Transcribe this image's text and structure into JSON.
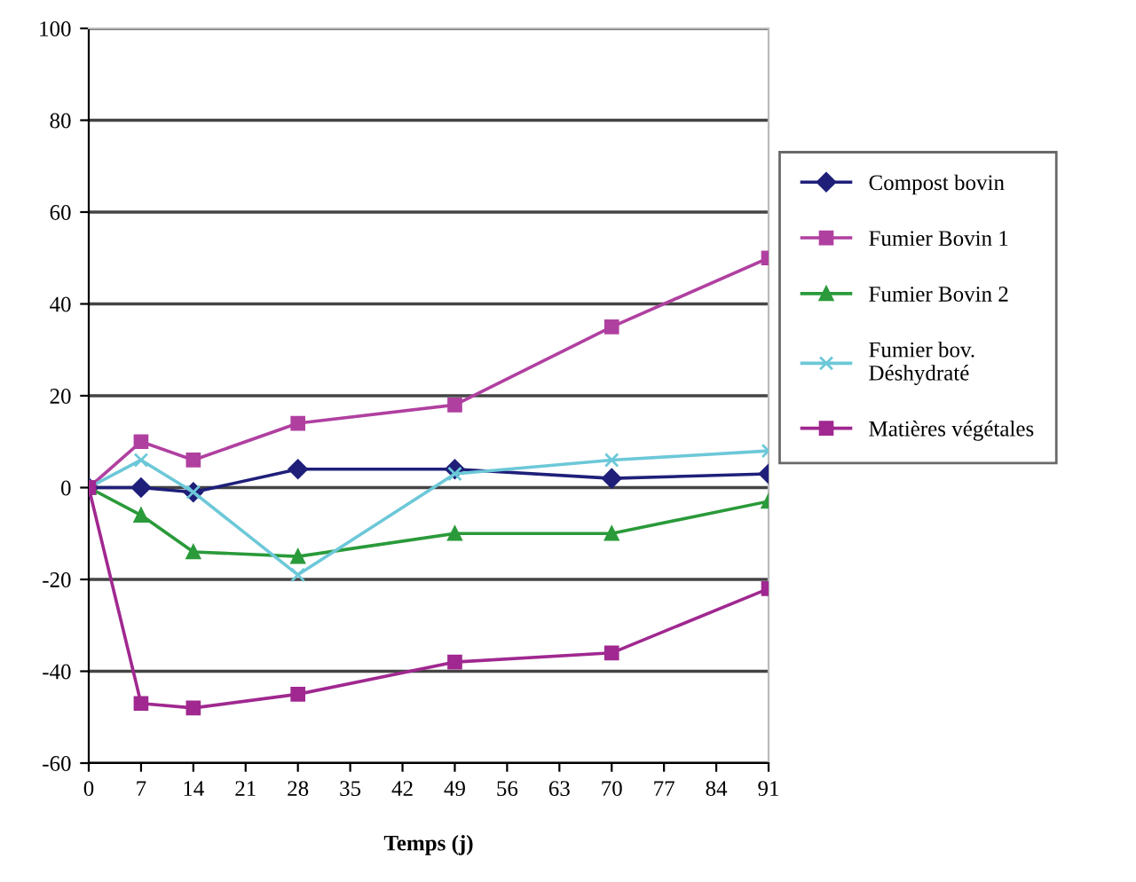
{
  "chart_data": {
    "type": "line",
    "xlabel": "Temps (j)",
    "x": [
      0,
      7,
      14,
      28,
      49,
      70,
      91
    ],
    "xlim": [
      0,
      91
    ],
    "xticks": [
      0,
      7,
      14,
      21,
      28,
      35,
      42,
      49,
      56,
      63,
      70,
      77,
      84,
      91
    ],
    "ylim": [
      -60,
      100
    ],
    "yticks": [
      -60,
      -40,
      -20,
      0,
      20,
      40,
      60,
      80,
      100
    ],
    "grid": "y",
    "legend": "right",
    "series": [
      {
        "name": "Compost bovin",
        "color": "#1f1f7a",
        "marker": "diamond",
        "values": [
          0,
          0,
          -1,
          4,
          4,
          2,
          3
        ]
      },
      {
        "name": "Fumier Bovin 1",
        "color": "#b040a0",
        "marker": "square",
        "values": [
          0,
          10,
          6,
          14,
          18,
          35,
          50
        ]
      },
      {
        "name": "Fumier Bovin 2",
        "color": "#2a9a3a",
        "marker": "triangle",
        "values": [
          0,
          -6,
          -14,
          -15,
          -10,
          -10,
          -3
        ]
      },
      {
        "name": "Fumier bov.\nDéshydraté",
        "color": "#6cc8d8",
        "marker": "cross",
        "values": [
          0,
          6,
          -1,
          -19,
          3,
          6,
          8
        ]
      },
      {
        "name": "Matières végétales",
        "color": "#a02890",
        "marker": "square",
        "values": [
          0,
          -47,
          -48,
          -45,
          -38,
          -36,
          -22
        ]
      }
    ]
  }
}
